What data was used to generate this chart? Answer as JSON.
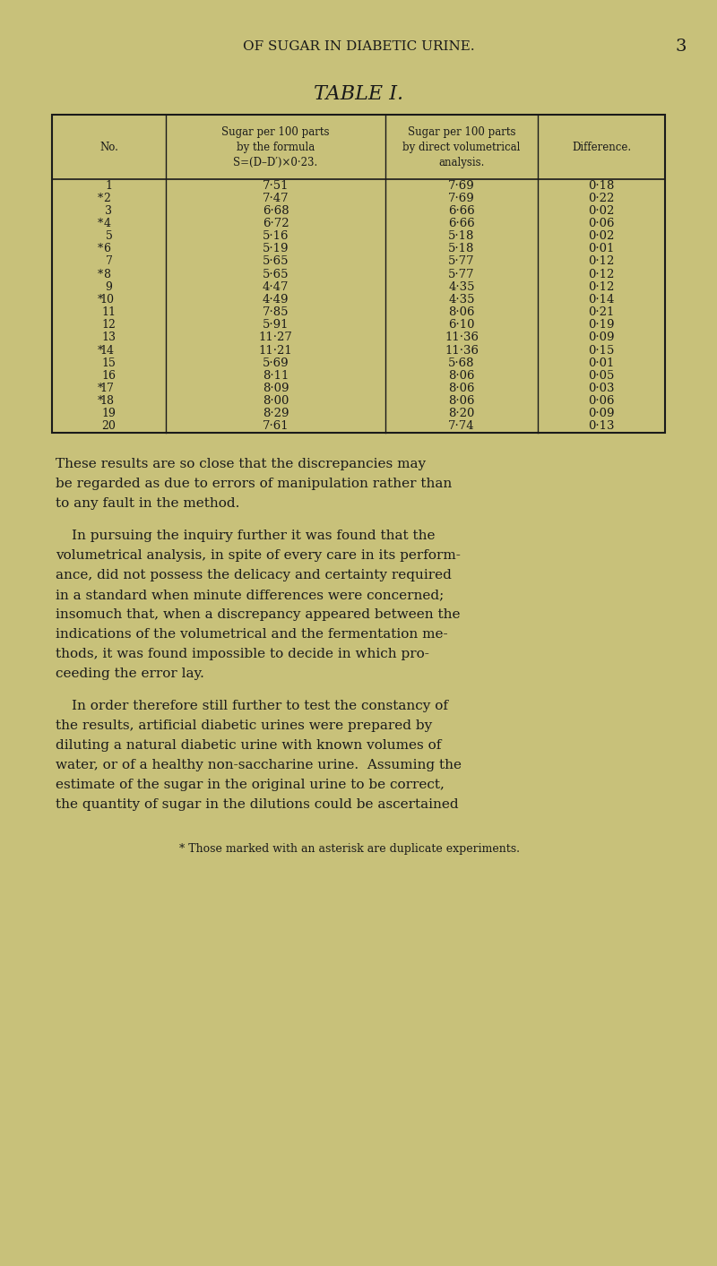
{
  "bg_color": "#c8c17a",
  "page_color": "#c8c17a",
  "header_text": "OF SUGAR IN DIABETIC URINE.",
  "page_number": "3",
  "title": "TABLE I.",
  "col_headers": [
    "No.",
    "Sugar per 100 parts\nby the formula\nS=(D–D′)×0·23.",
    "Sugar per 100 parts\nby direct volumetrical\nanalysis.",
    "Difference."
  ],
  "rows": [
    [
      "1",
      "7·51",
      "7·69",
      "0·18"
    ],
    [
      "*2",
      "7·47",
      "7·69",
      "0·22"
    ],
    [
      "3",
      "6·68",
      "6·66",
      "0·02"
    ],
    [
      "*4",
      "6·72",
      "6·66",
      "0·06"
    ],
    [
      "5",
      "5·16",
      "5·18",
      "0·02"
    ],
    [
      "*6",
      "5·19",
      "5·18",
      "0·01"
    ],
    [
      "7",
      "5·65",
      "5·77",
      "0·12"
    ],
    [
      "*8",
      "5·65",
      "5·77",
      "0·12"
    ],
    [
      "9",
      "4·47",
      "4·35",
      "0·12"
    ],
    [
      "*10",
      "4·49",
      "4·35",
      "0·14"
    ],
    [
      "11",
      "7·85",
      "8·06",
      "0·21"
    ],
    [
      "12",
      "5·91",
      "6·10",
      "0·19"
    ],
    [
      "13",
      "11·27",
      "11·36",
      "0·09"
    ],
    [
      "*14",
      "11·21",
      "11·36",
      "0·15"
    ],
    [
      "15",
      "5·69",
      "5·68",
      "0·01"
    ],
    [
      "16",
      "8·11",
      "8·06",
      "0·05"
    ],
    [
      "*17",
      "8·09",
      "8·06",
      "0·03"
    ],
    [
      "*18",
      "8·00",
      "8·06",
      "0·06"
    ],
    [
      "19",
      "8·29",
      "8·20",
      "0·09"
    ],
    [
      "20",
      "7·61",
      "7·74",
      "0·13"
    ]
  ],
  "paragraph1": "These results are so close that the discrepancies may be regarded as due to errors of manipulation rather than to any fault in the method.",
  "paragraph2": "In pursuing the inquiry further it was found that the volumetrical analysis, in spite of every care in its perform-ance, did not possess the delicacy and certainty required in a standard when minute differences were concerned; insomuch that, when a discrepancy appeared between the indications of the volumetrical and the fermentation me-thods, it was found impossible to decide in which pro-ceeding the error lay.",
  "paragraph3": "In order therefore still further to test the constancy of the results, artificial diabetic urines were prepared by diluting a natural diabetic urine with known volumes of water, or of a healthy non-saccharine urine.  Assuming the estimate of the sugar in the original urine to be correct, the quantity of sugar in the dilutions could be ascertained",
  "footnote": "* Those marked with an asterisk are duplicate experiments."
}
